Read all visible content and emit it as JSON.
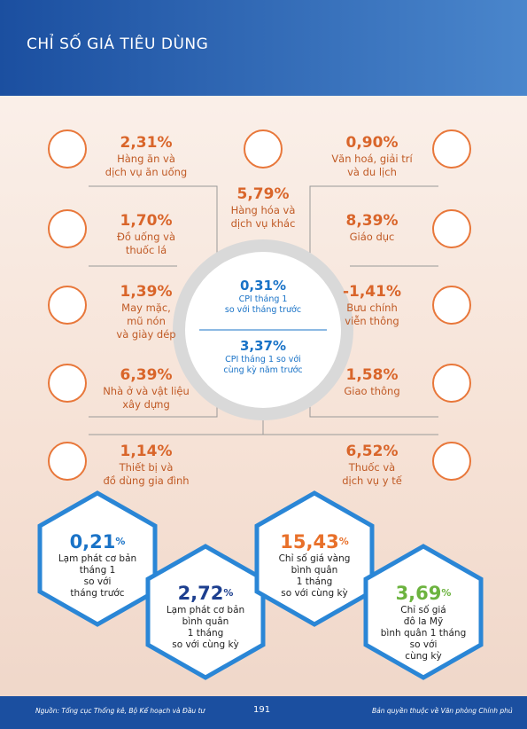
{
  "header": {
    "title": "CHỈ SỐ GIÁ TIÊU DÙNG"
  },
  "left_items": [
    {
      "value": "2,31%",
      "label": [
        "Hàng ăn và",
        "dịch vụ ăn uống"
      ]
    },
    {
      "value": "1,70%",
      "label": [
        "Đồ uống và",
        "thuốc lá"
      ]
    },
    {
      "value": "1,39%",
      "label": [
        "May mặc,",
        "mũ nón",
        "và giày dép"
      ]
    },
    {
      "value": "6,39%",
      "label": [
        "Nhà ở và vật liệu",
        "xây dựng"
      ]
    },
    {
      "value": "1,14%",
      "label": [
        "Thiết bị và",
        "đồ dùng gia đình"
      ]
    }
  ],
  "middle_item": {
    "value": "5,79%",
    "label": [
      "Hàng hóa và",
      "dịch vụ khác"
    ]
  },
  "right_items": [
    {
      "value": "0,90%",
      "label": [
        "Văn hoá, giải trí",
        "và du lịch"
      ]
    },
    {
      "value": "8,39%",
      "label": [
        "Giáo dục"
      ]
    },
    {
      "value": "-1,41%",
      "label": [
        "Bưu chính",
        "viễn thông"
      ]
    },
    {
      "value": "1,58%",
      "label": [
        "Giao thông"
      ]
    },
    {
      "value": "6,52%",
      "label": [
        "Thuốc và",
        "dịch vụ y tế"
      ]
    }
  ],
  "center": [
    {
      "value": "0,31%",
      "label": [
        "CPI tháng 1",
        "so với tháng trước"
      ]
    },
    {
      "value": "3,37%",
      "label": [
        "CPI tháng 1 so với",
        "cùng kỳ năm trước"
      ]
    }
  ],
  "hexagons": [
    {
      "value": "0,21",
      "unit": "%",
      "label": [
        "Lạm phát cơ bản",
        "tháng 1",
        "so với",
        "tháng trước"
      ]
    },
    {
      "value": "2,72",
      "unit": "%",
      "label": [
        "Lạm phát cơ bản",
        "bình quân",
        "1 tháng",
        "so với cùng kỳ"
      ]
    },
    {
      "value": "15,43",
      "unit": "%",
      "label": [
        "Chỉ số giá vàng",
        "bình quân",
        "1 tháng",
        "so với cùng kỳ"
      ]
    },
    {
      "value": "3,69",
      "unit": "%",
      "label": [
        "Chỉ số giá",
        "đô la Mỹ",
        "bình quân 1 tháng",
        "so với",
        "cùng kỳ"
      ]
    }
  ],
  "footer": {
    "source": "Nguồn: Tổng cục Thống kê, Bộ Kế hoạch và Đầu tư",
    "page": "191",
    "copyright": "Bản quyền thuộc về Văn phòng Chính phủ"
  }
}
